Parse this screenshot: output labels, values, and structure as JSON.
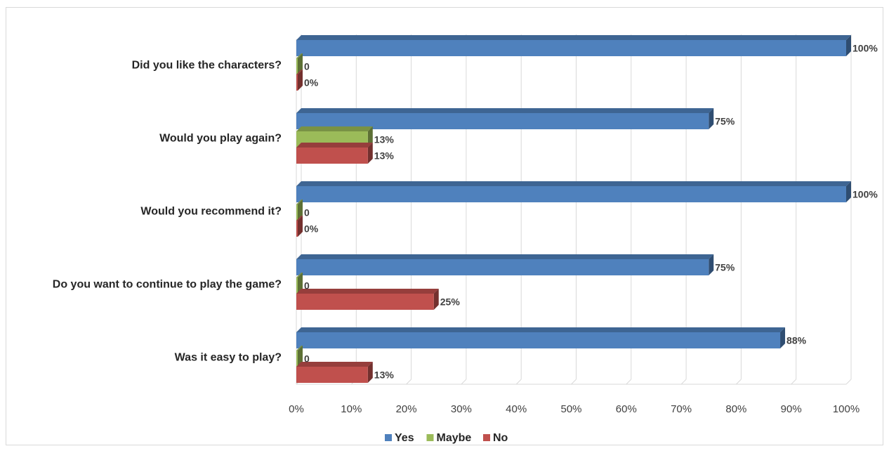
{
  "chart_data": {
    "type": "bar",
    "orientation": "horizontal",
    "style": "3d-clustered",
    "categories": [
      "Did you like the characters?",
      "Would you play again?",
      "Would you recommend it?",
      "Do you want to continue to play the game?",
      "Was it easy to play?"
    ],
    "series": [
      {
        "name": "Yes",
        "color": "#4f81bd",
        "values": [
          1.0,
          0.75,
          1.0,
          0.75,
          0.88
        ],
        "labels": [
          "100%",
          "75%",
          "100%",
          "75%",
          "88%"
        ]
      },
      {
        "name": "Maybe",
        "color": "#9bbb59",
        "values": [
          0,
          0.13,
          0,
          0,
          0
        ],
        "labels": [
          "0",
          "13%",
          "0",
          "0",
          "0"
        ]
      },
      {
        "name": "No",
        "color": "#c0504d",
        "values": [
          0,
          0.13,
          0,
          0.25,
          0.13
        ],
        "labels": [
          "0%",
          "13%",
          "0%",
          "25%",
          "13%"
        ]
      }
    ],
    "x_ticks": [
      "0%",
      "10%",
      "20%",
      "30%",
      "40%",
      "50%",
      "60%",
      "70%",
      "80%",
      "90%",
      "100%"
    ],
    "xlim": [
      0,
      1
    ],
    "grid": true,
    "legend": "bottom"
  }
}
